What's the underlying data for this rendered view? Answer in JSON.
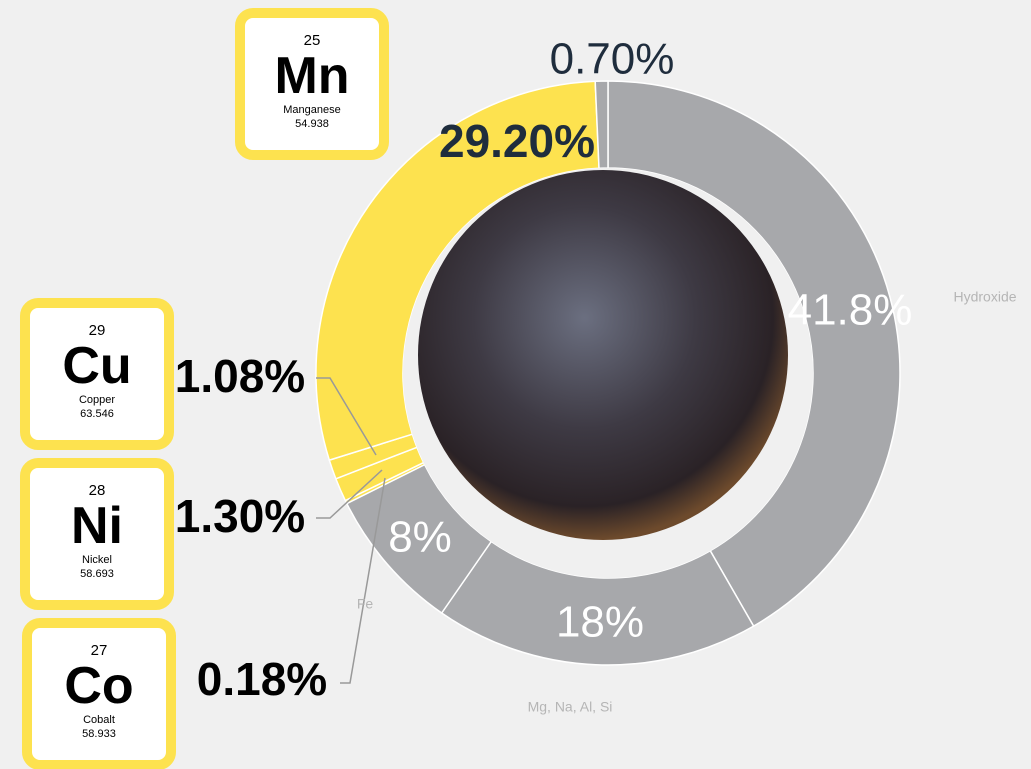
{
  "chart_data": {
    "type": "donut",
    "categories": [
      "Hydroxide",
      "Mg, Na, Al, Si",
      "Fe",
      null,
      null,
      null,
      null,
      null
    ],
    "values": [
      41.8,
      18,
      8,
      0.18,
      1.3,
      1.08,
      29.2,
      0.7
    ],
    "value_labels": [
      "41.8%",
      "18%",
      "8%",
      "0.18%",
      "1.30%",
      "1.08%",
      "29.20%",
      "0.70%"
    ],
    "colors": [
      "#a7a8ab",
      "#a7a8ab",
      "#a7a8ab",
      "#fde24f",
      "#fde24f",
      "#fde24f",
      "#fde24f",
      "#a7a8ab"
    ]
  },
  "elements": [
    {
      "number": 25,
      "symbol": "Mn",
      "name": "Manganese",
      "weight": 54.938
    },
    {
      "number": 29,
      "symbol": "Cu",
      "name": "Copper",
      "weight": 63.546
    },
    {
      "number": 28,
      "symbol": "Ni",
      "name": "Nickel",
      "weight": 58.693
    },
    {
      "number": 27,
      "symbol": "Co",
      "name": "Cobalt",
      "weight": 58.933
    }
  ]
}
